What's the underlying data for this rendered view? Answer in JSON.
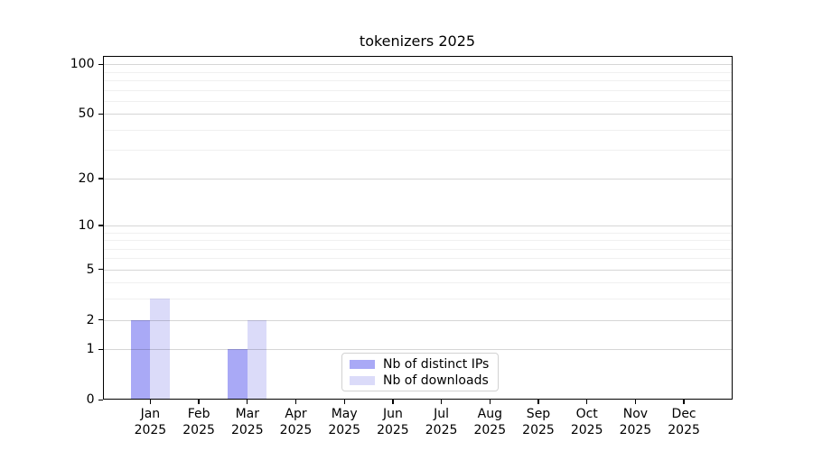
{
  "chart_data": {
    "type": "bar",
    "title": "tokenizers 2025",
    "categories": [
      [
        "Jan",
        "2025"
      ],
      [
        "Feb",
        "2025"
      ],
      [
        "Mar",
        "2025"
      ],
      [
        "Apr",
        "2025"
      ],
      [
        "May",
        "2025"
      ],
      [
        "Jun",
        "2025"
      ],
      [
        "Jul",
        "2025"
      ],
      [
        "Aug",
        "2025"
      ],
      [
        "Sep",
        "2025"
      ],
      [
        "Oct",
        "2025"
      ],
      [
        "Nov",
        "2025"
      ],
      [
        "Dec",
        "2025"
      ]
    ],
    "series": [
      {
        "name": "Nb of distinct IPs",
        "color": "#a9a9f6",
        "values": [
          2,
          0,
          1,
          0,
          0,
          0,
          0,
          0,
          0,
          0,
          0,
          0
        ]
      },
      {
        "name": "Nb of downloads",
        "color": "#dbdbf9",
        "values": [
          3,
          0,
          2,
          0,
          0,
          0,
          0,
          0,
          0,
          0,
          0,
          0
        ]
      }
    ],
    "xlabel": "",
    "ylabel": "",
    "yscale": "log1p",
    "ylim": [
      0,
      113
    ],
    "yticks": [
      0,
      1,
      2,
      5,
      10,
      20,
      50,
      100
    ],
    "yminorticks": [
      3,
      4,
      6,
      7,
      8,
      9,
      30,
      40,
      60,
      70,
      80,
      90
    ],
    "grid": "horizontal, drawn over bars",
    "legend_position": "lower center"
  }
}
